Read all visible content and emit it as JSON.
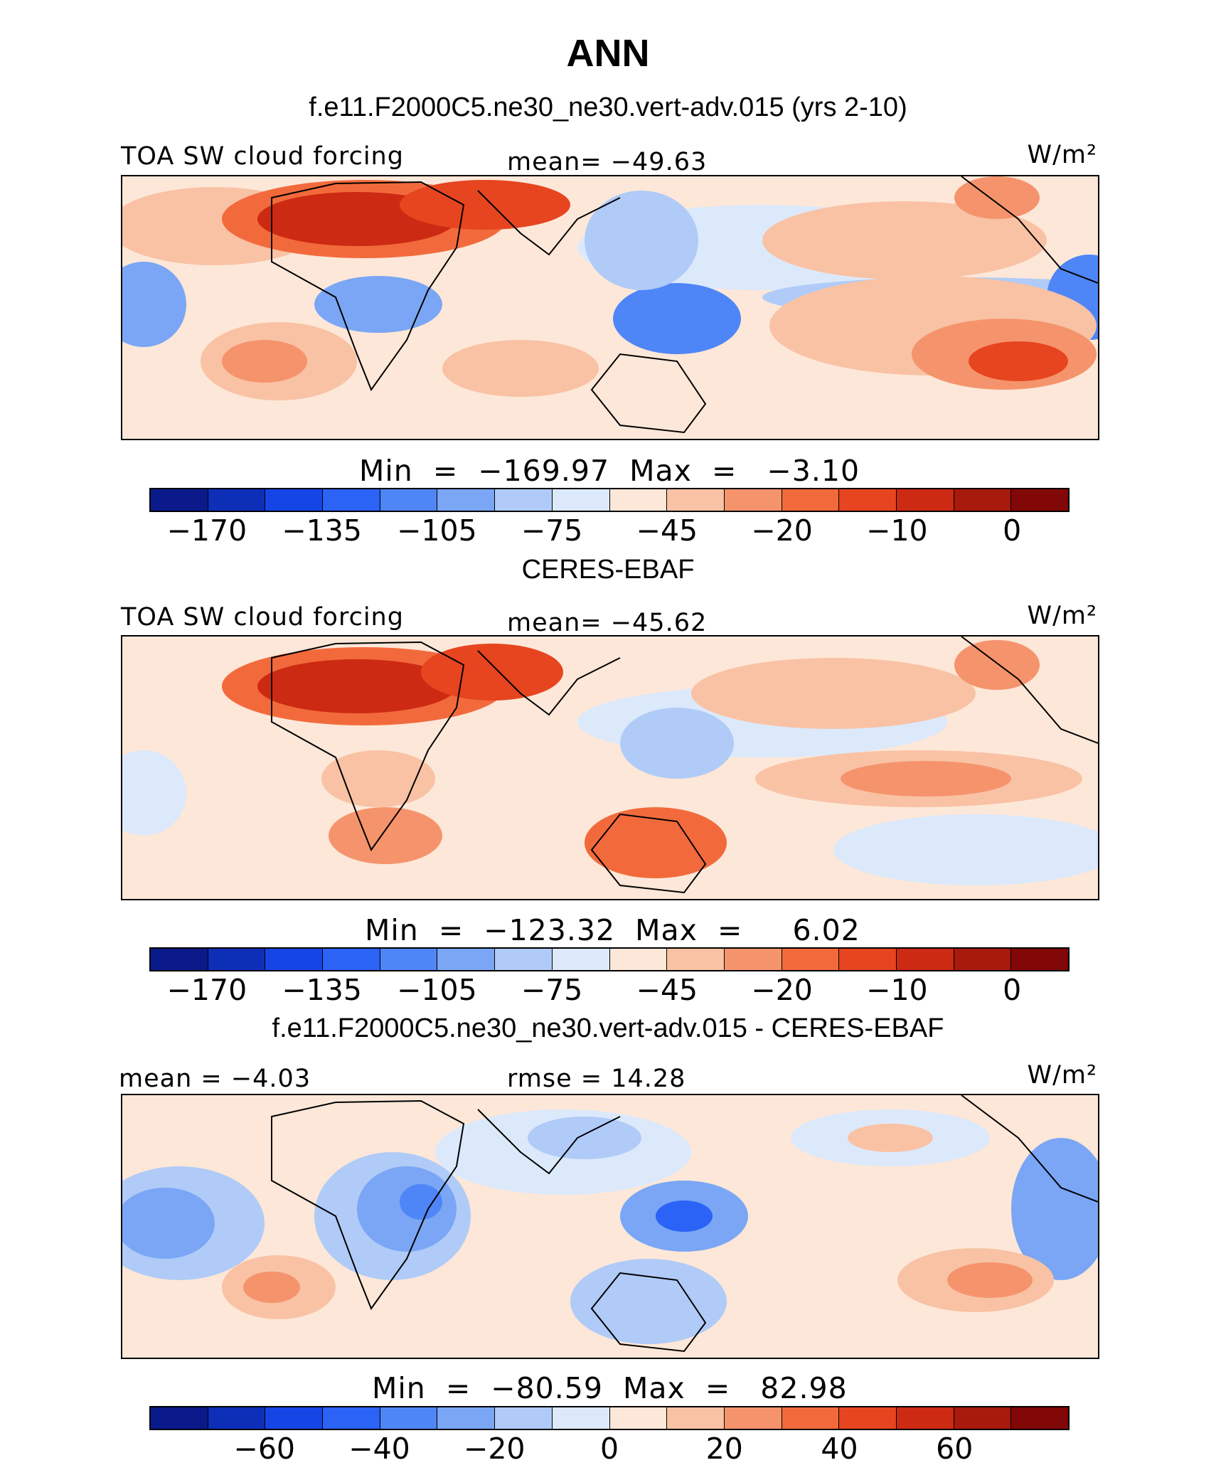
{
  "title": "ANN",
  "colors": {
    "scale": [
      "#0a1a8a",
      "#0d2fb8",
      "#1446e6",
      "#2a63f5",
      "#4f86f7",
      "#7aa6f5",
      "#b0cbf7",
      "#dce9fb",
      "#fde7d8",
      "#f9c2a4",
      "#f5946c",
      "#f26a3c",
      "#e64520",
      "#cc2a12",
      "#a81a0c",
      "#820808"
    ]
  },
  "panels": [
    {
      "subtitle": "f.e11.F2000C5.ne30_ne30.vert-adv.015 (yrs 2-10)",
      "left_label": "TOA SW cloud forcing",
      "center_label": "mean= −49.63",
      "units": "W/m²",
      "minmax": "Min  =  −169.97  Max  =   −3.10",
      "ticks": [
        "−170",
        "−135",
        "−105",
        "−75",
        "−45",
        "−20",
        "−10",
        "0"
      ]
    },
    {
      "subtitle": "CERES-EBAF",
      "left_label": "TOA SW cloud forcing",
      "center_label": "mean= −45.62",
      "units": "W/m²",
      "minmax": "Min  =  −123.32  Max  =     6.02",
      "ticks": [
        "−170",
        "−135",
        "−105",
        "−75",
        "−45",
        "−20",
        "−10",
        "0"
      ]
    },
    {
      "subtitle": "f.e11.F2000C5.ne30_ne30.vert-adv.015 - CERES-EBAF",
      "left_label": "mean  =   −4.03",
      "center_label": "rmse  =   14.28",
      "units": "W/m²",
      "minmax": "Min  =  −80.59  Max  =   82.98",
      "ticks": [
        "−60",
        "−40",
        "−20",
        "0",
        "20",
        "40",
        "60"
      ]
    }
  ]
}
